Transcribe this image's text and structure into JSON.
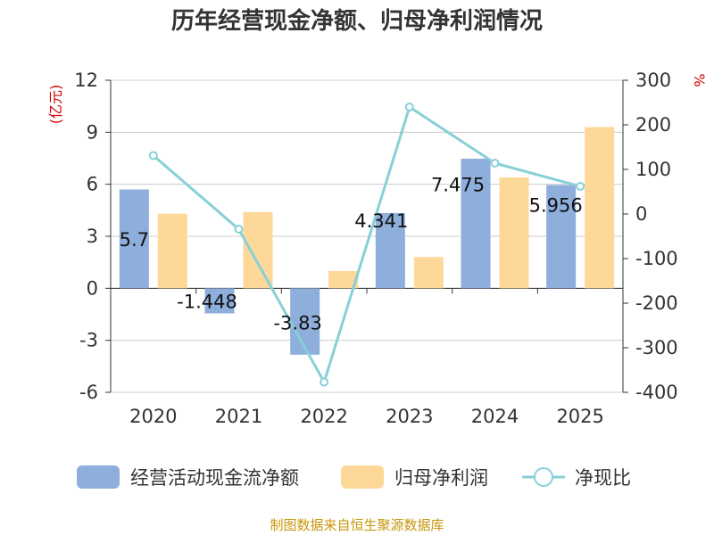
{
  "chart_data": {
    "type": "bar",
    "title": "历年经营现金净额、归母净利润情况",
    "categories": [
      "2020",
      "2021",
      "2022",
      "2023",
      "2024",
      "2025"
    ],
    "y_left": {
      "unit": "(亿元)",
      "range": [
        -6,
        12
      ],
      "ticks": [
        "12",
        "9",
        "6",
        "3",
        "0",
        "-3",
        "-6"
      ]
    },
    "y_right": {
      "unit": "%",
      "range": [
        -400,
        300
      ],
      "ticks": [
        "300",
        "200",
        "100",
        "0",
        "-100",
        "-200",
        "-300",
        "-400"
      ]
    },
    "series": [
      {
        "name": "经营活动现金流净额",
        "type": "bar",
        "axis": "left",
        "color": "#8eaedb",
        "values": [
          5.7,
          -1.448,
          -3.83,
          4.341,
          7.475,
          5.956
        ],
        "labels": [
          "5.7",
          "-1.448",
          "-3.83",
          "4.341",
          "7.475",
          "5.956"
        ]
      },
      {
        "name": "归母净利润",
        "type": "bar",
        "axis": "left",
        "color": "#fdd899",
        "values": [
          4.3,
          4.4,
          1.0,
          1.8,
          6.4,
          9.3
        ]
      },
      {
        "name": "净现比",
        "type": "line",
        "axis": "right",
        "color": "#87d0d8",
        "values": [
          131,
          -34,
          -377,
          240,
          114,
          62
        ]
      }
    ],
    "grid": true,
    "legend": "bottom"
  },
  "footer": {
    "source": "制图数据来自恒生聚源数据库"
  }
}
